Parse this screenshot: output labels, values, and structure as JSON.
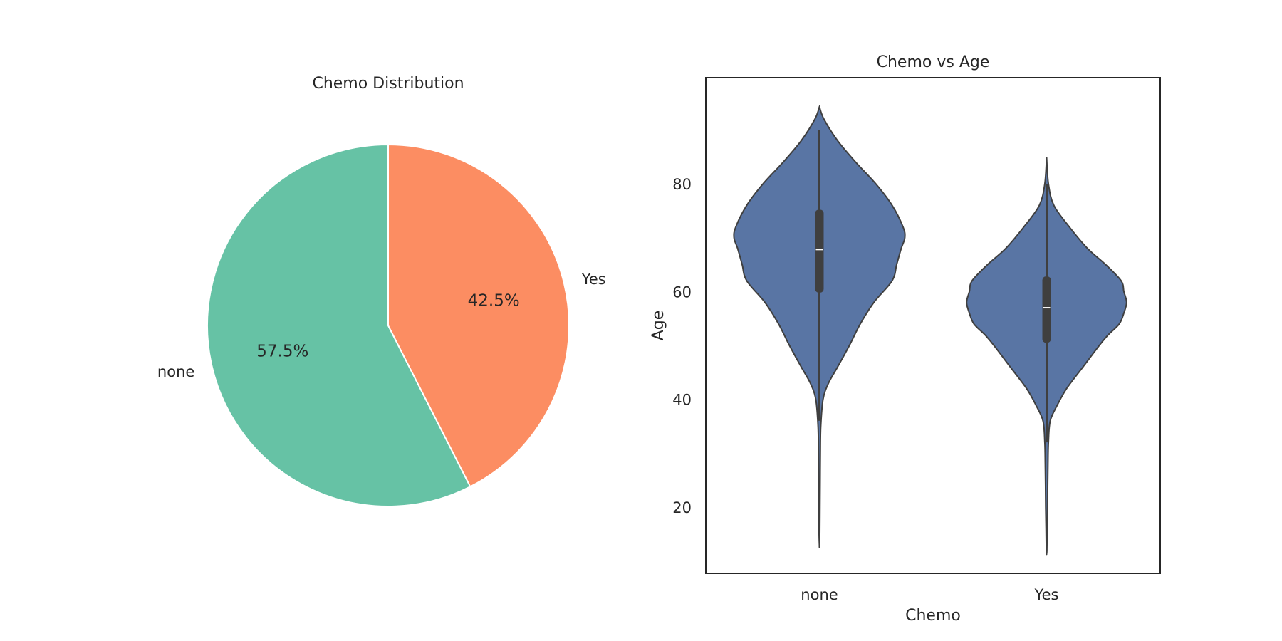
{
  "chart_data": [
    {
      "type": "pie",
      "title": "Chemo Distribution",
      "slices": [
        {
          "label": "none",
          "value": 57.5,
          "pct_label": "57.5%",
          "color": "#66c2a5"
        },
        {
          "label": "Yes",
          "value": 42.5,
          "pct_label": "42.5%",
          "color": "#fc8d62"
        }
      ],
      "start_angle_deg": 90,
      "direction": "counterclockwise"
    },
    {
      "type": "violin",
      "title": "Chemo vs Age",
      "xlabel": "Chemo",
      "ylabel": "Age",
      "categories": [
        "none",
        "Yes"
      ],
      "ylim": [
        7.7,
        99.7
      ],
      "yticks": [
        20,
        40,
        60,
        80
      ],
      "grid": false,
      "color": "#5975a4",
      "violins": [
        {
          "category": "none",
          "median": 67.8,
          "q1": 59.8,
          "q3": 75.2,
          "whisker_low": 36,
          "whisker_high": 90,
          "density_profile": [
            [
              94.3,
              0.0
            ],
            [
              92,
              0.05
            ],
            [
              88,
              0.2
            ],
            [
              84,
              0.4
            ],
            [
              80,
              0.62
            ],
            [
              76,
              0.8
            ],
            [
              72,
              0.92
            ],
            [
              70,
              0.94
            ],
            [
              68,
              0.9
            ],
            [
              65,
              0.85
            ],
            [
              62,
              0.8
            ],
            [
              58,
              0.6
            ],
            [
              54,
              0.45
            ],
            [
              50,
              0.33
            ],
            [
              46,
              0.2
            ],
            [
              43,
              0.1
            ],
            [
              40,
              0.04
            ],
            [
              35,
              0.015
            ],
            [
              30,
              0.01
            ],
            [
              25,
              0.008
            ],
            [
              20,
              0.006
            ],
            [
              15,
              0.004
            ],
            [
              12.8,
              0.0
            ]
          ]
        },
        {
          "category": "Yes",
          "median": 57.0,
          "q1": 50.5,
          "q3": 62.8,
          "whisker_low": 32,
          "whisker_high": 80,
          "density_profile": [
            [
              84.9,
              0.0
            ],
            [
              80,
              0.02
            ],
            [
              76,
              0.08
            ],
            [
              72,
              0.25
            ],
            [
              68,
              0.45
            ],
            [
              65,
              0.65
            ],
            [
              62,
              0.82
            ],
            [
              60,
              0.85
            ],
            [
              58,
              0.88
            ],
            [
              56,
              0.85
            ],
            [
              54,
              0.8
            ],
            [
              52,
              0.68
            ],
            [
              50,
              0.58
            ],
            [
              46,
              0.4
            ],
            [
              42,
              0.22
            ],
            [
              39,
              0.12
            ],
            [
              36,
              0.04
            ],
            [
              32,
              0.02
            ],
            [
              28,
              0.015
            ],
            [
              24,
              0.012
            ],
            [
              20,
              0.01
            ],
            [
              16,
              0.006
            ],
            [
              12,
              0.003
            ],
            [
              11.3,
              0.0
            ]
          ]
        }
      ]
    }
  ]
}
